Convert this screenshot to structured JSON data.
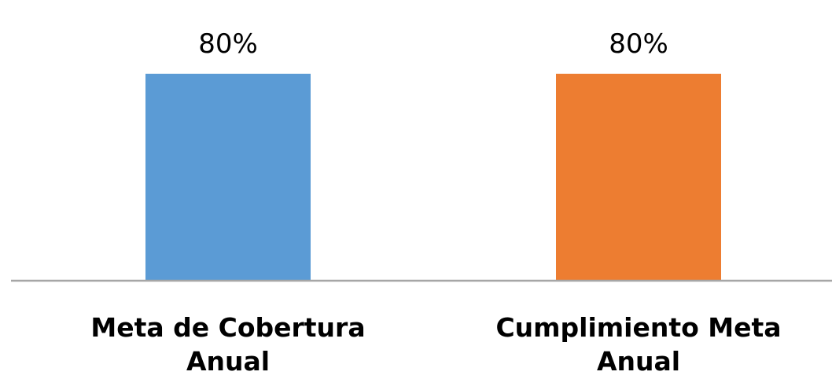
{
  "chart_data": {
    "type": "bar",
    "categories": [
      "Meta de Cobertura Anual",
      "Cumplimiento Meta Anual"
    ],
    "category_lines": [
      [
        "Meta de Cobertura",
        "Anual"
      ],
      [
        "Cumplimiento Meta",
        "Anual"
      ]
    ],
    "values": [
      80,
      80
    ],
    "data_labels": [
      "80%",
      "80%"
    ],
    "colors": [
      "#5b9bd5",
      "#ed7d31"
    ],
    "axis_color": "#a6a6a6",
    "ylim": [
      0,
      100
    ],
    "grid": false,
    "legend": "none"
  }
}
